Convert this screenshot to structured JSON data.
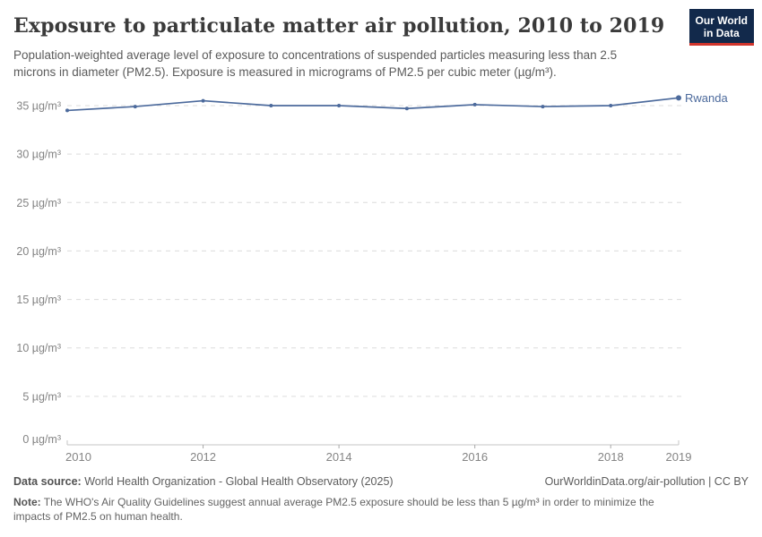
{
  "header": {
    "title": "Exposure to particulate matter air pollution, 2010 to 2019",
    "subtitle": "Population-weighted average level of exposure to concentrations of suspended particles measuring less than 2.5 microns in diameter (PM2.5). Exposure is measured in micrograms of PM2.5 per cubic meter (µg/m³)."
  },
  "logo": {
    "line1": "Our World",
    "line2": "in Data"
  },
  "chart_data": {
    "type": "line",
    "x": [
      2010,
      2011,
      2012,
      2013,
      2014,
      2015,
      2016,
      2017,
      2018,
      2019
    ],
    "series": [
      {
        "name": "Rwanda",
        "color": "#4c6a9c",
        "values": [
          34.5,
          34.9,
          35.5,
          35.0,
          35.0,
          34.7,
          35.1,
          34.9,
          35.0,
          35.8
        ]
      }
    ],
    "title": "Exposure to particulate matter air pollution, 2010 to 2019",
    "xlabel": "",
    "ylabel": "",
    "xlim": [
      2010,
      2019
    ],
    "ylim": [
      0,
      35
    ],
    "yticks": [
      0,
      5,
      10,
      15,
      20,
      25,
      30,
      35
    ],
    "ytick_unit": " µg/m³",
    "xticks": [
      2010,
      2012,
      2014,
      2016,
      2018,
      2019
    ],
    "grid": "horizontal-dashed",
    "legend_position": "end-of-line-label"
  },
  "colors": {
    "series_blue": "#4c6a9c",
    "gridline": "#dcdcdc",
    "axis_line": "#c4c4c4",
    "tick_label": "#848484",
    "logo_bg": "#12294b",
    "logo_red": "#d0342c"
  },
  "footer": {
    "datasource_label": "Data source:",
    "datasource_text": " World Health Organization - Global Health Observatory (2025)",
    "link_text": "OurWorldinData.org/air-pollution | CC BY",
    "note_label": "Note:",
    "note_text": " The WHO's Air Quality Guidelines suggest annual average PM2.5 exposure should be less than 5 µg/m³ in order to minimize the impacts of PM2.5 on human health."
  }
}
